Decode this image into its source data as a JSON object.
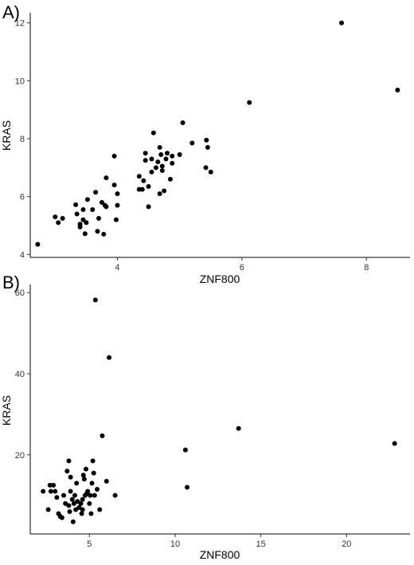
{
  "chart_data": [
    {
      "panel_label": "A)",
      "type": "scatter",
      "xlabel": "ZNF800",
      "ylabel": "KRAS",
      "xlim": [
        2.6,
        8.7
      ],
      "ylim": [
        3.9,
        12.35
      ],
      "xticks": [
        4,
        6,
        8
      ],
      "yticks": [
        4,
        6,
        8,
        10,
        12
      ],
      "grid": false,
      "point_color": "#000000",
      "points": [
        [
          2.72,
          4.35
        ],
        [
          3.0,
          5.3
        ],
        [
          3.05,
          5.1
        ],
        [
          3.12,
          5.25
        ],
        [
          3.33,
          5.72
        ],
        [
          3.35,
          5.4
        ],
        [
          3.4,
          5.05
        ],
        [
          3.4,
          4.95
        ],
        [
          3.45,
          5.2
        ],
        [
          3.45,
          5.55
        ],
        [
          3.48,
          4.72
        ],
        [
          3.5,
          5.1
        ],
        [
          3.52,
          5.9
        ],
        [
          3.6,
          5.55
        ],
        [
          3.65,
          6.15
        ],
        [
          3.68,
          4.8
        ],
        [
          3.7,
          5.25
        ],
        [
          3.75,
          5.8
        ],
        [
          3.78,
          4.7
        ],
        [
          3.8,
          5.7
        ],
        [
          3.82,
          5.65
        ],
        [
          3.82,
          6.65
        ],
        [
          3.95,
          6.4
        ],
        [
          3.95,
          7.4
        ],
        [
          3.98,
          5.2
        ],
        [
          4.0,
          5.7
        ],
        [
          4.0,
          6.1
        ],
        [
          4.35,
          6.25
        ],
        [
          4.35,
          6.7
        ],
        [
          4.4,
          6.25
        ],
        [
          4.42,
          6.55
        ],
        [
          4.45,
          7.5
        ],
        [
          4.45,
          7.25
        ],
        [
          4.5,
          5.65
        ],
        [
          4.5,
          6.35
        ],
        [
          4.55,
          6.85
        ],
        [
          4.55,
          7.3
        ],
        [
          4.58,
          8.2
        ],
        [
          4.62,
          7.0
        ],
        [
          4.65,
          7.2
        ],
        [
          4.68,
          7.7
        ],
        [
          4.68,
          6.1
        ],
        [
          4.7,
          7.45
        ],
        [
          4.72,
          6.9
        ],
        [
          4.72,
          7.05
        ],
        [
          4.75,
          6.2
        ],
        [
          4.78,
          7.3
        ],
        [
          4.8,
          7.5
        ],
        [
          4.85,
          6.6
        ],
        [
          4.88,
          7.15
        ],
        [
          4.88,
          7.4
        ],
        [
          5.0,
          7.45
        ],
        [
          5.05,
          8.55
        ],
        [
          5.2,
          7.85
        ],
        [
          5.42,
          7.0
        ],
        [
          5.43,
          7.95
        ],
        [
          5.45,
          7.7
        ],
        [
          5.5,
          6.85
        ],
        [
          6.12,
          9.25
        ],
        [
          7.6,
          12.0
        ],
        [
          8.5,
          9.68
        ]
      ]
    },
    {
      "panel_label": "B)",
      "type": "scatter",
      "xlabel": "ZNF800",
      "ylabel": "KRAS",
      "xlim": [
        1.55,
        23.7
      ],
      "ylim": [
        0.5,
        62.0
      ],
      "xticks": [
        5,
        10,
        15,
        20
      ],
      "yticks": [
        20,
        40,
        60
      ],
      "grid": false,
      "point_color": "#000000",
      "points": [
        [
          2.3,
          11.0
        ],
        [
          2.6,
          6.5
        ],
        [
          2.7,
          12.5
        ],
        [
          2.75,
          11.0
        ],
        [
          2.9,
          12.5
        ],
        [
          3.0,
          11.0
        ],
        [
          3.1,
          9.5
        ],
        [
          3.2,
          5.5
        ],
        [
          3.3,
          4.8
        ],
        [
          3.4,
          4.5
        ],
        [
          3.5,
          10.0
        ],
        [
          3.6,
          8.0
        ],
        [
          3.7,
          16.0
        ],
        [
          3.8,
          18.5
        ],
        [
          3.8,
          7.5
        ],
        [
          3.85,
          6.0
        ],
        [
          3.9,
          11.0
        ],
        [
          3.9,
          14.5
        ],
        [
          4.0,
          9.0
        ],
        [
          4.05,
          3.5
        ],
        [
          4.1,
          8.0
        ],
        [
          4.15,
          10.0
        ],
        [
          4.2,
          6.5
        ],
        [
          4.25,
          13.0
        ],
        [
          4.3,
          8.5
        ],
        [
          4.4,
          7.0
        ],
        [
          4.5,
          8.0
        ],
        [
          4.55,
          5.5
        ],
        [
          4.6,
          6.5
        ],
        [
          4.6,
          9.0
        ],
        [
          4.65,
          15.0
        ],
        [
          4.7,
          14.0
        ],
        [
          4.75,
          10.0
        ],
        [
          4.8,
          16.5
        ],
        [
          4.85,
          10.5
        ],
        [
          4.9,
          11.0
        ],
        [
          5.0,
          8.0
        ],
        [
          5.05,
          10.0
        ],
        [
          5.1,
          5.5
        ],
        [
          5.15,
          13.0
        ],
        [
          5.2,
          18.5
        ],
        [
          5.25,
          15.5
        ],
        [
          5.3,
          10.0
        ],
        [
          5.35,
          58.2
        ],
        [
          5.45,
          11.5
        ],
        [
          5.6,
          6.5
        ],
        [
          5.75,
          24.7
        ],
        [
          6.0,
          13.5
        ],
        [
          6.15,
          44.0
        ],
        [
          6.5,
          10.0
        ],
        [
          10.6,
          21.2
        ],
        [
          10.7,
          12.0
        ],
        [
          13.7,
          26.5
        ],
        [
          22.8,
          22.8
        ]
      ]
    }
  ]
}
